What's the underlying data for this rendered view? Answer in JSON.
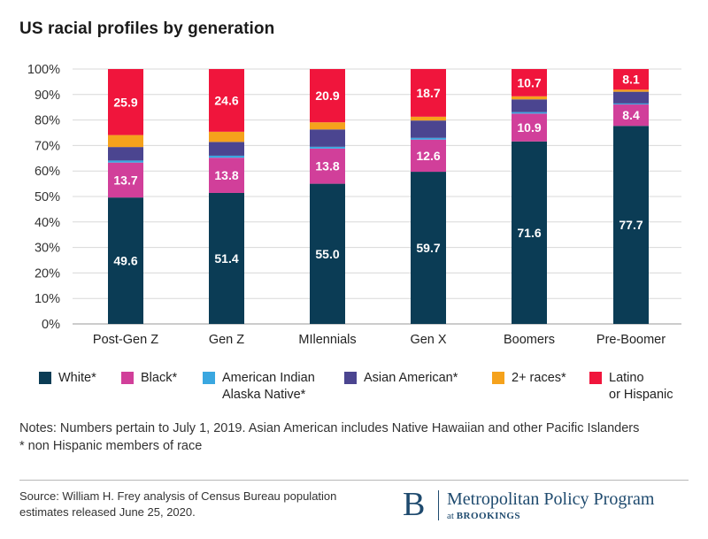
{
  "chart_data": {
    "type": "bar",
    "stacked": true,
    "title": "US racial profiles by generation",
    "xlabel": "",
    "ylabel": "",
    "ylim": [
      0,
      100
    ],
    "yticks": [
      "0%",
      "10%",
      "20%",
      "30%",
      "40%",
      "50%",
      "60%",
      "70%",
      "80%",
      "90%",
      "100%"
    ],
    "categories": [
      "Post-Gen Z",
      "Gen Z",
      "MIlennials",
      "Gen X",
      "Boomers",
      "Pre-Boomer"
    ],
    "series": [
      {
        "name": "White*",
        "color": "#0b3c55",
        "values": [
          49.6,
          51.4,
          55.0,
          59.7,
          71.6,
          77.7
        ],
        "labels": [
          "49.6",
          "51.4",
          "55.0",
          "59.7",
          "71.6",
          "77.7"
        ]
      },
      {
        "name": "Black*",
        "color": "#d13f9a",
        "values": [
          13.7,
          13.8,
          13.8,
          12.6,
          10.9,
          8.4
        ],
        "labels": [
          "13.7",
          "13.8",
          "13.8",
          "12.6",
          "10.9",
          "8.4"
        ]
      },
      {
        "name": "American Indian Alaska Native*",
        "color": "#3aa7e0",
        "values": [
          0.8,
          0.8,
          0.7,
          0.7,
          0.6,
          0.4
        ],
        "labels": [
          "",
          "",
          "",
          "",
          "",
          ""
        ]
      },
      {
        "name": "Asian American*",
        "color": "#4b4590",
        "values": [
          5.3,
          5.4,
          6.8,
          6.8,
          5.0,
          4.6
        ],
        "labels": [
          "",
          "",
          "",
          "",
          "",
          ""
        ]
      },
      {
        "name": "2+ races*",
        "color": "#f5a21c",
        "values": [
          4.7,
          4.0,
          2.8,
          1.5,
          1.2,
          0.8
        ],
        "labels": [
          "",
          "",
          "",
          "",
          "",
          ""
        ]
      },
      {
        "name": "Latino or Hispanic",
        "color": "#f0153c",
        "values": [
          25.9,
          24.6,
          20.9,
          18.7,
          10.7,
          8.1
        ],
        "labels": [
          "25.9",
          "24.6",
          "20.9",
          "18.7",
          "10.7",
          "8.1"
        ]
      }
    ]
  },
  "legend": [
    {
      "lines": [
        "White*"
      ],
      "color": "#0b3c55"
    },
    {
      "lines": [
        "Black*"
      ],
      "color": "#d13f9a"
    },
    {
      "lines": [
        "American Indian",
        "Alaska Native*"
      ],
      "color": "#3aa7e0"
    },
    {
      "lines": [
        "Asian American*"
      ],
      "color": "#4b4590"
    },
    {
      "lines": [
        "2+ races*"
      ],
      "color": "#f5a21c"
    },
    {
      "lines": [
        "Latino",
        "or Hispanic"
      ],
      "color": "#f0153c"
    }
  ],
  "notes": {
    "line1": "Notes: Numbers pertain to July 1, 2019. Asian American includes Native Hawaiian and other Pacific Islanders",
    "line2": "* non Hispanic members of race"
  },
  "source": "Source: William H. Frey analysis of Census Bureau population estimates released June 25, 2020.",
  "logo": {
    "letter": "B",
    "name": "Metropolitan Policy Program",
    "sub_prefix": "at",
    "sub_org": "BROOKINGS"
  }
}
